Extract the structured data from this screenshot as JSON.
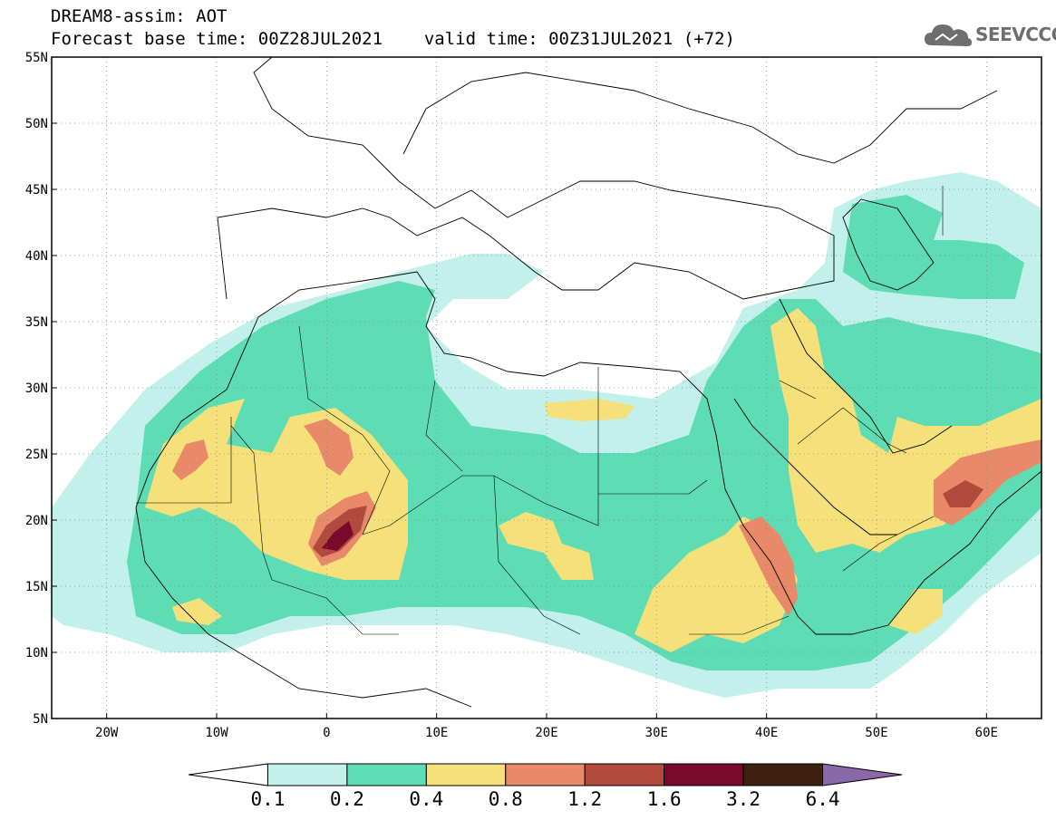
{
  "title_line1": "DREAM8-assim: AOT",
  "title_base": "Forecast base time: 00Z28JUL2021",
  "title_valid": "valid time: 00Z31JUL2021 (+72)",
  "logo_text": "SEEVCCC",
  "logo_icon": "cloud-icon",
  "map": {
    "lon_range": [
      -25,
      65
    ],
    "lat_range": [
      5,
      55
    ],
    "lat_ticks": [
      {
        "value": 55,
        "label": "55N"
      },
      {
        "value": 50,
        "label": "50N"
      },
      {
        "value": 45,
        "label": "45N"
      },
      {
        "value": 40,
        "label": "40N"
      },
      {
        "value": 35,
        "label": "35N"
      },
      {
        "value": 30,
        "label": "30N"
      },
      {
        "value": 25,
        "label": "25N"
      },
      {
        "value": 20,
        "label": "20N"
      },
      {
        "value": 15,
        "label": "15N"
      },
      {
        "value": 10,
        "label": "10N"
      },
      {
        "value": 5,
        "label": "5N"
      }
    ],
    "lon_ticks": [
      {
        "value": -20,
        "label": "20W"
      },
      {
        "value": -10,
        "label": "10W"
      },
      {
        "value": 0,
        "label": "0"
      },
      {
        "value": 10,
        "label": "10E"
      },
      {
        "value": 20,
        "label": "20E"
      },
      {
        "value": 30,
        "label": "30E"
      },
      {
        "value": 40,
        "label": "40E"
      },
      {
        "value": 50,
        "label": "50E"
      },
      {
        "value": 60,
        "label": "60E"
      }
    ],
    "grid": "dotted"
  },
  "colorbar": {
    "colors": [
      "#ffffff",
      "#c2f0ea",
      "#5edcb4",
      "#f5e07a",
      "#e8896a",
      "#b04a3c",
      "#7a0a2c",
      "#3d200f",
      "#8a68a8"
    ],
    "labels": [
      "0.1",
      "0.2",
      "0.4",
      "0.8",
      "1.2",
      "1.6",
      "3.2",
      "6.4"
    ]
  }
}
